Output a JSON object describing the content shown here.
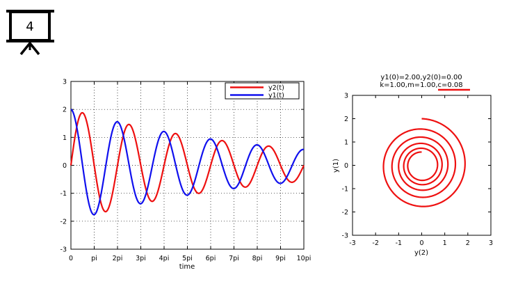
{
  "badge": {
    "number": "4",
    "icon": "presentation-board-icon"
  },
  "colors": {
    "y1": "#1010ee",
    "y2": "#ee1010",
    "grid": "#000000"
  },
  "chart_data": [
    {
      "type": "line",
      "title": "",
      "xlabel": "time",
      "ylabel": "",
      "xlim": [
        0,
        31.4159
      ],
      "ylim": [
        -3,
        3
      ],
      "x_tick_labels": [
        "0",
        "pi",
        "2pi",
        "3pi",
        "4pi",
        "5pi",
        "6pi",
        "7pi",
        "8pi",
        "9pi",
        "10pi"
      ],
      "y_tick_labels": [
        "-3",
        "-2",
        "-1",
        "0",
        "1",
        "2",
        "3"
      ],
      "grid": true,
      "legend": "top-right",
      "series": [
        {
          "name": "y2(t)",
          "color": "#ee1010",
          "model": "-2*exp(-0.04 t)*sin(t)"
        },
        {
          "name": "y1(t)",
          "color": "#1010ee",
          "model": "2*exp(-0.04 t)*cos(t)"
        }
      ]
    },
    {
      "type": "line",
      "title_lines": [
        "y1(0)=2.00,y2(0)=0.00",
        "k=1.00,m=1.00,c=0.08"
      ],
      "xlabel": "y(2)",
      "ylabel": "y(1)",
      "xlim": [
        -3,
        3
      ],
      "ylim": [
        -3,
        3
      ],
      "x_tick_labels": [
        "-3",
        "-2",
        "-1",
        "0",
        "1",
        "2",
        "3"
      ],
      "y_tick_labels": [
        "-3",
        "-2",
        "-1",
        "0",
        "1",
        "2",
        "3"
      ],
      "grid": false,
      "series": [
        {
          "name": "",
          "color": "#ee1010",
          "x_model": "y2(t)",
          "y_model": "y1(t)",
          "t_range": [
            0,
            31.4159
          ]
        }
      ]
    }
  ]
}
